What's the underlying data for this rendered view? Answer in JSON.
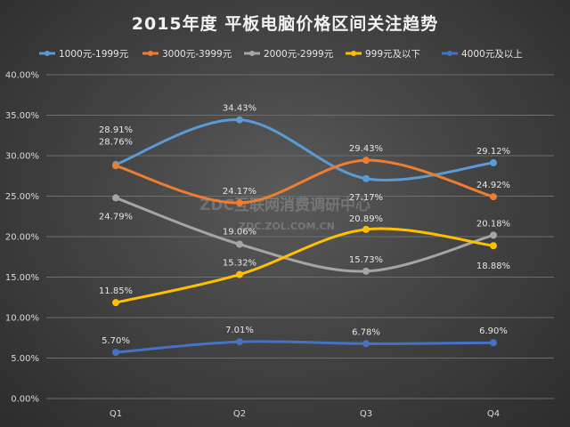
{
  "chart_data": {
    "type": "line",
    "title": "2015年度 平板电脑价格区间关注趋势",
    "categories": [
      "Q1",
      "Q2",
      "Q3",
      "Q4"
    ],
    "ylim": [
      0,
      40
    ],
    "y_step": 5,
    "y_tick_labels": [
      "0.00%",
      "5.00%",
      "10.00%",
      "15.00%",
      "20.00%",
      "25.00%",
      "30.00%",
      "35.00%",
      "40.00%"
    ],
    "grid": true,
    "legend_position": "top",
    "series": [
      {
        "name": "1000元-1999元",
        "color": "#5b9bd5",
        "values": [
          28.91,
          34.43,
          27.17,
          29.12
        ],
        "labels": [
          "28.91%",
          "34.43%",
          "27.17%",
          "29.12%"
        ]
      },
      {
        "name": "3000元-3999元",
        "color": "#ed7d31",
        "values": [
          28.76,
          24.17,
          29.43,
          24.92
        ],
        "labels": [
          "28.76%",
          "24.17%",
          "29.43%",
          "24.92%"
        ]
      },
      {
        "name": "2000元-2999元",
        "color": "#a5a5a5",
        "values": [
          24.79,
          19.06,
          15.73,
          20.18
        ],
        "labels": [
          "24.79%",
          "19.06%",
          "15.73%",
          "20.18%"
        ]
      },
      {
        "name": "999元及以下",
        "color": "#ffc000",
        "values": [
          11.85,
          15.32,
          20.89,
          18.88
        ],
        "labels": [
          "11.85%",
          "15.32%",
          "20.89%",
          "18.88%"
        ]
      },
      {
        "name": "4000元及以上",
        "color": "#4472c4",
        "values": [
          5.7,
          7.01,
          6.78,
          6.9
        ],
        "labels": [
          "5.70%",
          "7.01%",
          "6.78%",
          "6.90%"
        ]
      }
    ],
    "watermark": {
      "line1": "ZDC互联网消费调研中心",
      "line2": "ZDC.ZOL.COM.CN"
    }
  }
}
